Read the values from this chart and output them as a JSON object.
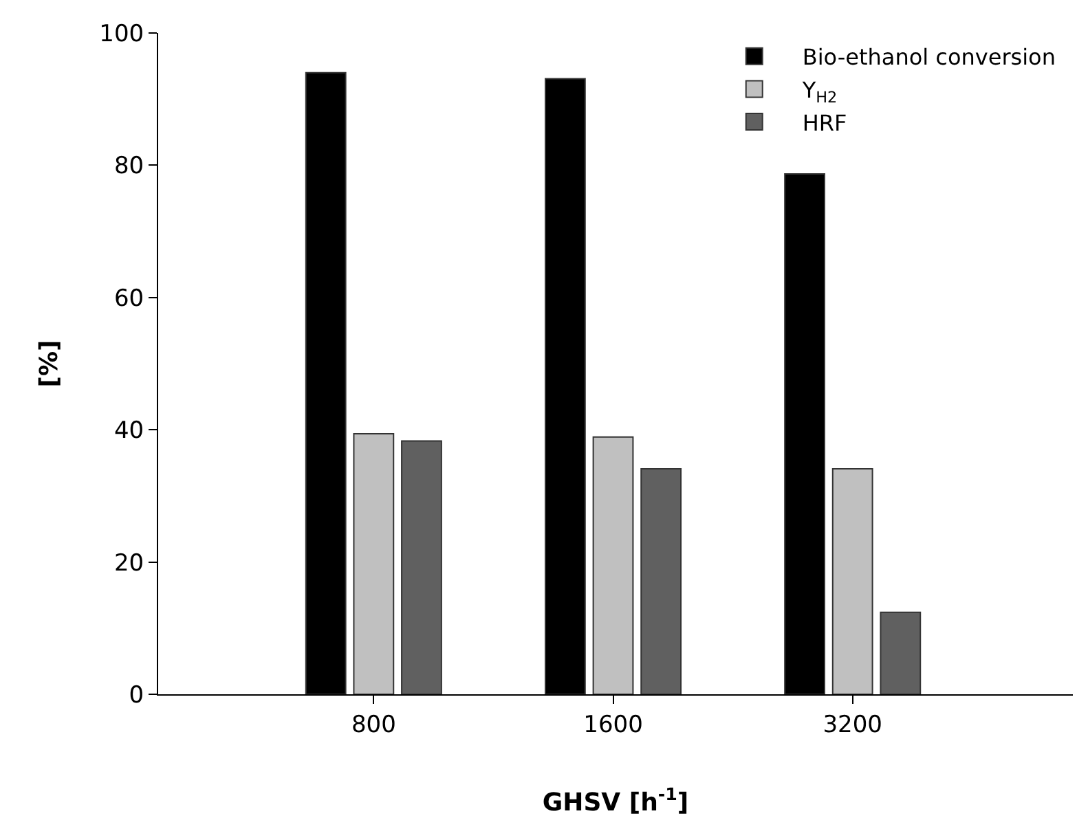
{
  "chart_data": {
    "type": "bar",
    "xlabel": "GHSV [h$^{-1}$]",
    "ylabel": "[%]",
    "categories": [
      "800",
      "1600",
      "3200"
    ],
    "series": [
      {
        "name": "Bio-ethanol conversion",
        "color": "#000000",
        "values": [
          94.0,
          93.1,
          78.7
        ]
      },
      {
        "name": "Y$_{H2}$",
        "color": "#c0c0c0",
        "values": [
          39.4,
          38.9,
          34.1
        ]
      },
      {
        "name": "HRF",
        "color": "#606060",
        "values": [
          38.3,
          34.1,
          12.4
        ]
      }
    ],
    "ylim": [
      0,
      100
    ],
    "yticks": [
      0,
      20,
      40,
      60,
      80,
      100
    ],
    "grid": false,
    "legend": "top right"
  }
}
